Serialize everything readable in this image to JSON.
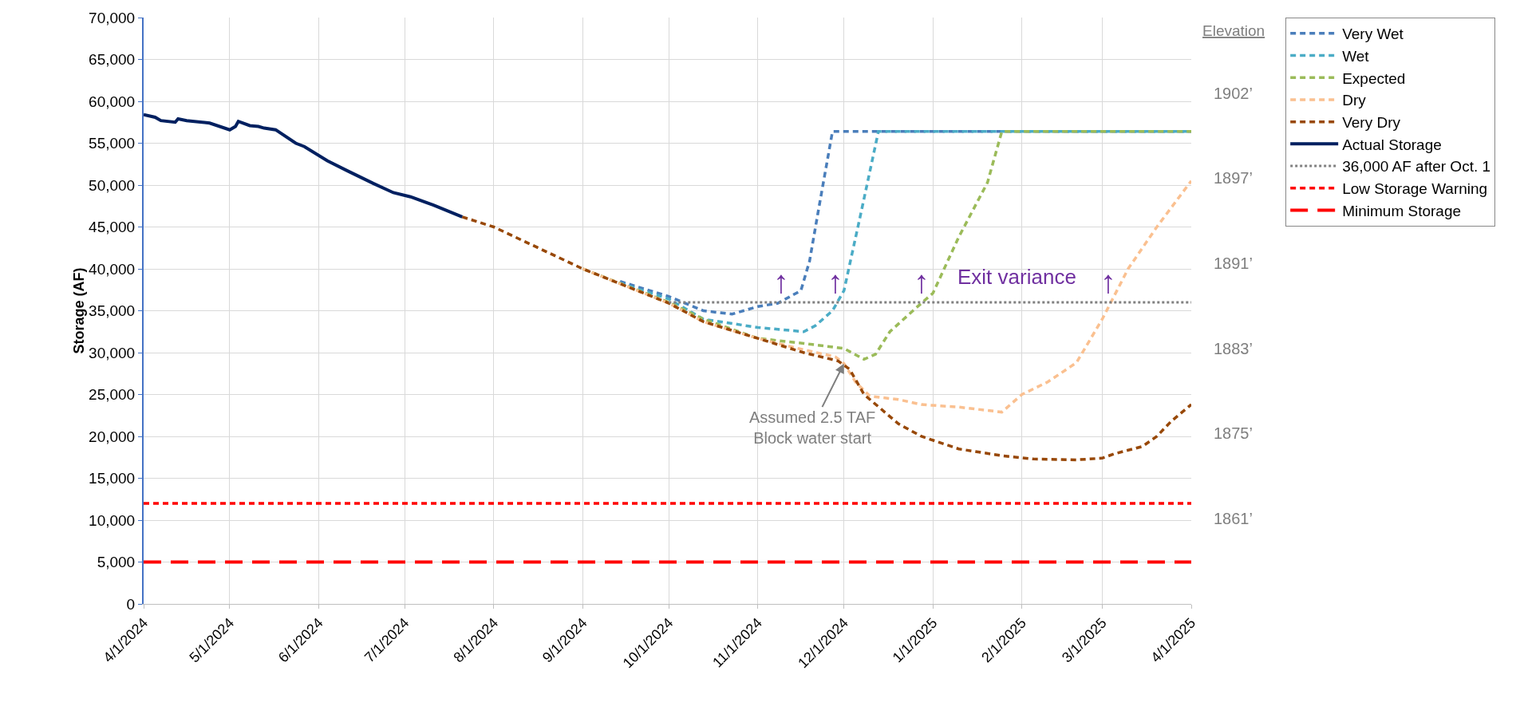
{
  "chart_data": {
    "type": "line",
    "ylabel": "Storage (AF)",
    "y2label": "Elevation",
    "xlim": [
      "2024-04-01",
      "2025-04-01"
    ],
    "xticks": [
      {
        "value": "2024-04-01",
        "label": "4/1/2024"
      },
      {
        "value": "2024-05-01",
        "label": "5/1/2024"
      },
      {
        "value": "2024-06-01",
        "label": "6/1/2024"
      },
      {
        "value": "2024-07-01",
        "label": "7/1/2024"
      },
      {
        "value": "2024-08-01",
        "label": "8/1/2024"
      },
      {
        "value": "2024-09-01",
        "label": "9/1/2024"
      },
      {
        "value": "2024-10-01",
        "label": "10/1/2024"
      },
      {
        "value": "2024-11-01",
        "label": "11/1/2024"
      },
      {
        "value": "2024-12-01",
        "label": "12/1/2024"
      },
      {
        "value": "2025-01-01",
        "label": "1/1/2025"
      },
      {
        "value": "2025-02-01",
        "label": "2/1/2025"
      },
      {
        "value": "2025-03-01",
        "label": "3/1/2025"
      },
      {
        "value": "2025-04-01",
        "label": "4/1/2025"
      }
    ],
    "ylim": [
      0,
      70000
    ],
    "yticks": [
      {
        "value": 0,
        "label": "0"
      },
      {
        "value": 5000,
        "label": "5,000"
      },
      {
        "value": 10000,
        "label": "10,000"
      },
      {
        "value": 15000,
        "label": "15,000"
      },
      {
        "value": 20000,
        "label": "20,000"
      },
      {
        "value": 25000,
        "label": "25,000"
      },
      {
        "value": 30000,
        "label": "30,000"
      },
      {
        "value": 35000,
        "label": "35,000"
      },
      {
        "value": 40000,
        "label": "40,000"
      },
      {
        "value": 45000,
        "label": "45,000"
      },
      {
        "value": 50000,
        "label": "50,000"
      },
      {
        "value": 55000,
        "label": "55,000"
      },
      {
        "value": 60000,
        "label": "60,000"
      },
      {
        "value": 65000,
        "label": "65,000"
      },
      {
        "value": 70000,
        "label": "70,000"
      }
    ],
    "grid": true,
    "legend": "right",
    "marker": "none",
    "series": [
      {
        "name": "Very Wet",
        "color": "#4a7ebb",
        "line_style": "dashed",
        "x": [
          "2024-09-14",
          "2024-10-01",
          "2024-10-13",
          "2024-10-23",
          "2024-11-01",
          "2024-11-08",
          "2024-11-16",
          "2024-11-19",
          "2024-11-22",
          "2024-11-27",
          "2025-04-01"
        ],
        "values": [
          38500,
          36700,
          35000,
          34600,
          35500,
          35900,
          37400,
          40900,
          46800,
          56400,
          56400
        ]
      },
      {
        "name": "Wet",
        "color": "#4bacc6",
        "line_style": "dashed",
        "x": [
          "2024-09-14",
          "2024-10-01",
          "2024-10-13",
          "2024-11-01",
          "2024-11-17",
          "2024-11-21",
          "2024-11-27",
          "2024-12-01",
          "2024-12-07",
          "2024-12-13",
          "2025-04-01"
        ],
        "values": [
          38300,
          36400,
          34000,
          33000,
          32500,
          33200,
          35000,
          37400,
          46800,
          56400,
          56400
        ]
      },
      {
        "name": "Expected",
        "color": "#9bbb59",
        "line_style": "dashed",
        "x": [
          "2024-09-01",
          "2024-10-01",
          "2024-10-13",
          "2024-11-01",
          "2024-11-17",
          "2024-12-01",
          "2024-12-08",
          "2024-12-12",
          "2024-12-17",
          "2024-12-26",
          "2025-01-01",
          "2025-01-10",
          "2025-01-20",
          "2025-01-25",
          "2025-04-01"
        ],
        "values": [
          40000,
          36000,
          34000,
          31700,
          31100,
          30500,
          29200,
          29800,
          32500,
          35300,
          37100,
          43800,
          50300,
          56400,
          56400
        ]
      },
      {
        "name": "Dry",
        "color": "#fac090",
        "line_style": "dashed",
        "x": [
          "2024-09-01",
          "2024-10-01",
          "2024-10-13",
          "2024-11-01",
          "2024-11-15",
          "2024-11-28",
          "2024-12-01",
          "2024-12-05",
          "2024-12-10",
          "2024-12-20",
          "2024-12-28",
          "2025-01-10",
          "2025-01-25",
          "2025-02-01",
          "2025-02-10",
          "2025-02-20",
          "2025-03-01",
          "2025-03-10",
          "2025-03-20",
          "2025-04-01"
        ],
        "values": [
          40000,
          35900,
          33700,
          31700,
          30500,
          29500,
          28700,
          26500,
          24800,
          24400,
          23800,
          23500,
          22900,
          25000,
          26500,
          28800,
          34000,
          40000,
          45000,
          50500
        ]
      },
      {
        "name": "Very Dry",
        "color": "#984807",
        "line_style": "dashed",
        "x": [
          "2024-07-21",
          "2024-08-01",
          "2024-09-01",
          "2024-10-01",
          "2024-10-13",
          "2024-11-01",
          "2024-11-17",
          "2024-11-29",
          "2024-12-03",
          "2024-12-08",
          "2024-12-20",
          "2024-12-28",
          "2025-01-10",
          "2025-01-25",
          "2025-02-05",
          "2025-02-20",
          "2025-03-01",
          "2025-03-05",
          "2025-03-15",
          "2025-03-20",
          "2025-03-25",
          "2025-04-01"
        ],
        "values": [
          46200,
          45000,
          40000,
          35900,
          33700,
          31700,
          30000,
          29000,
          28000,
          25000,
          21500,
          20000,
          18500,
          17700,
          17300,
          17200,
          17400,
          17900,
          18800,
          20000,
          21800,
          23800
        ]
      },
      {
        "name": "Actual Storage",
        "color": "#002060",
        "line_style": "solid",
        "x": [
          "2024-04-01",
          "2024-04-05",
          "2024-04-07",
          "2024-04-12",
          "2024-04-13",
          "2024-04-16",
          "2024-04-24",
          "2024-05-01",
          "2024-05-03",
          "2024-05-04",
          "2024-05-08",
          "2024-05-11",
          "2024-05-13",
          "2024-05-17",
          "2024-05-24",
          "2024-05-27",
          "2024-06-04",
          "2024-06-11",
          "2024-06-20",
          "2024-06-27",
          "2024-07-03",
          "2024-07-11",
          "2024-07-21"
        ],
        "values": [
          58400,
          58100,
          57700,
          57500,
          57900,
          57700,
          57400,
          56600,
          57000,
          57600,
          57100,
          57000,
          56800,
          56600,
          55000,
          54600,
          52900,
          51700,
          50200,
          49100,
          48600,
          47600,
          46200
        ]
      },
      {
        "name": "36,000 AF after Oct. 1",
        "color": "#808080",
        "line_style": "dotted",
        "x": [
          "2024-10-01",
          "2025-04-01"
        ],
        "values": [
          36000,
          36000
        ]
      },
      {
        "name": "Low Storage Warning",
        "color": "#ff0000",
        "line_style": "dashed",
        "x": [
          "2024-04-01",
          "2025-04-01"
        ],
        "values": [
          12000,
          12000
        ]
      },
      {
        "name": "Minimum Storage",
        "color": "#ff0000",
        "line_style": "longdash",
        "x": [
          "2024-04-01",
          "2025-04-01"
        ],
        "values": [
          5000,
          5000
        ]
      }
    ],
    "annotations": [
      "Exit variance",
      {
        "text": "↑",
        "x": "2024-11-09",
        "y": 36000
      },
      {
        "text": "↑",
        "x": "2024-11-28",
        "y": 36000
      },
      {
        "text": "↑",
        "x": "2024-12-28",
        "y": 36000
      },
      {
        "text": "↑",
        "x": "2025-03-03",
        "y": 36000
      },
      {
        "text": "Assumed 2.5 TAF\nBlock water start",
        "x": "2024-12-01",
        "y": 28700
      },
      "1902’",
      "1897’",
      "1891’",
      "1883’",
      "1875’",
      "1861’"
    ]
  }
}
